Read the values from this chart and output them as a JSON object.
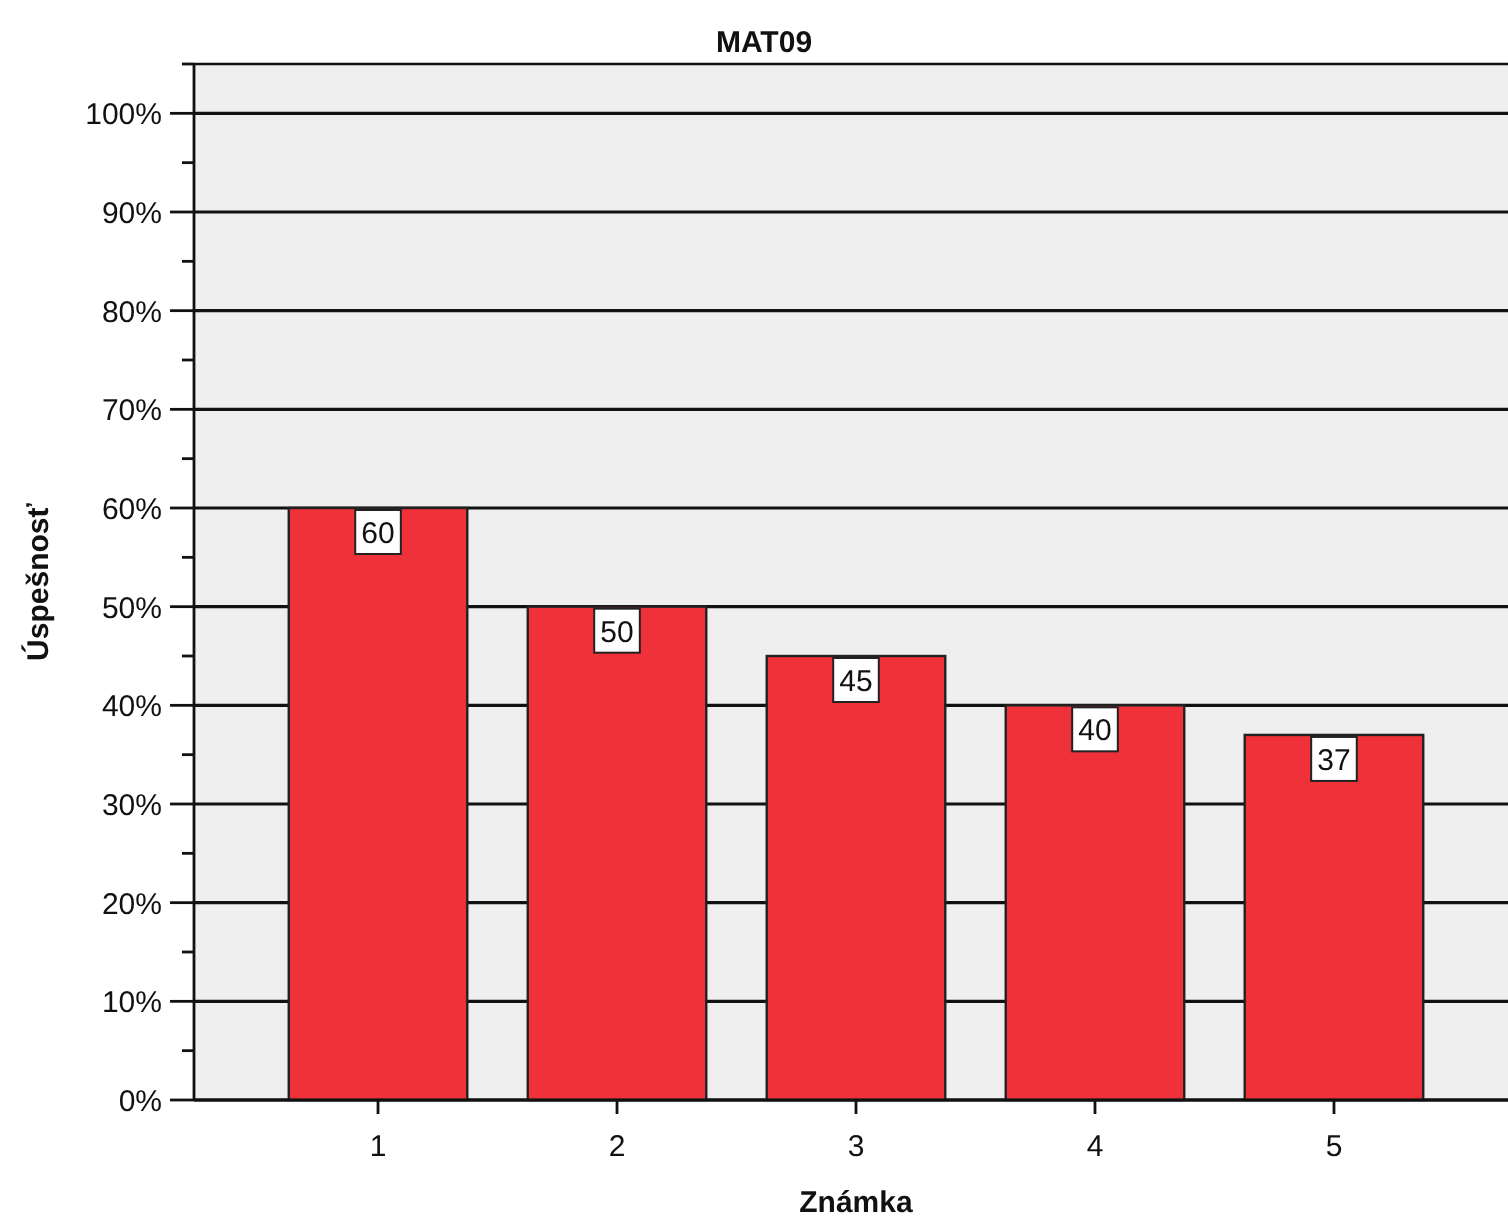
{
  "chart_data": {
    "type": "bar",
    "title": "MAT09",
    "xlabel": "Známka",
    "ylabel": "Úspešnosť",
    "categories": [
      "1",
      "2",
      "3",
      "4",
      "5"
    ],
    "values": [
      60,
      50,
      45,
      40,
      37
    ],
    "color": "#ef3139",
    "ylim": [
      0,
      105
    ],
    "yticks": [
      {
        "value": 0,
        "label": "0%"
      },
      {
        "value": 5,
        "label": null
      },
      {
        "value": 10,
        "label": "10%"
      },
      {
        "value": 15,
        "label": null
      },
      {
        "value": 20,
        "label": "20%"
      },
      {
        "value": 25,
        "label": null
      },
      {
        "value": 30,
        "label": "30%"
      },
      {
        "value": 35,
        "label": null
      },
      {
        "value": 40,
        "label": "40%"
      },
      {
        "value": 45,
        "label": null
      },
      {
        "value": 50,
        "label": "50%"
      },
      {
        "value": 55,
        "label": null
      },
      {
        "value": 60,
        "label": "60%"
      },
      {
        "value": 65,
        "label": null
      },
      {
        "value": 70,
        "label": "70%"
      },
      {
        "value": 75,
        "label": null
      },
      {
        "value": 80,
        "label": "80%"
      },
      {
        "value": 85,
        "label": null
      },
      {
        "value": 90,
        "label": "90%"
      },
      {
        "value": 95,
        "label": null
      },
      {
        "value": 100,
        "label": "100%"
      },
      {
        "value": 105,
        "label": null
      }
    ],
    "grid": "y",
    "data_labels": true
  }
}
